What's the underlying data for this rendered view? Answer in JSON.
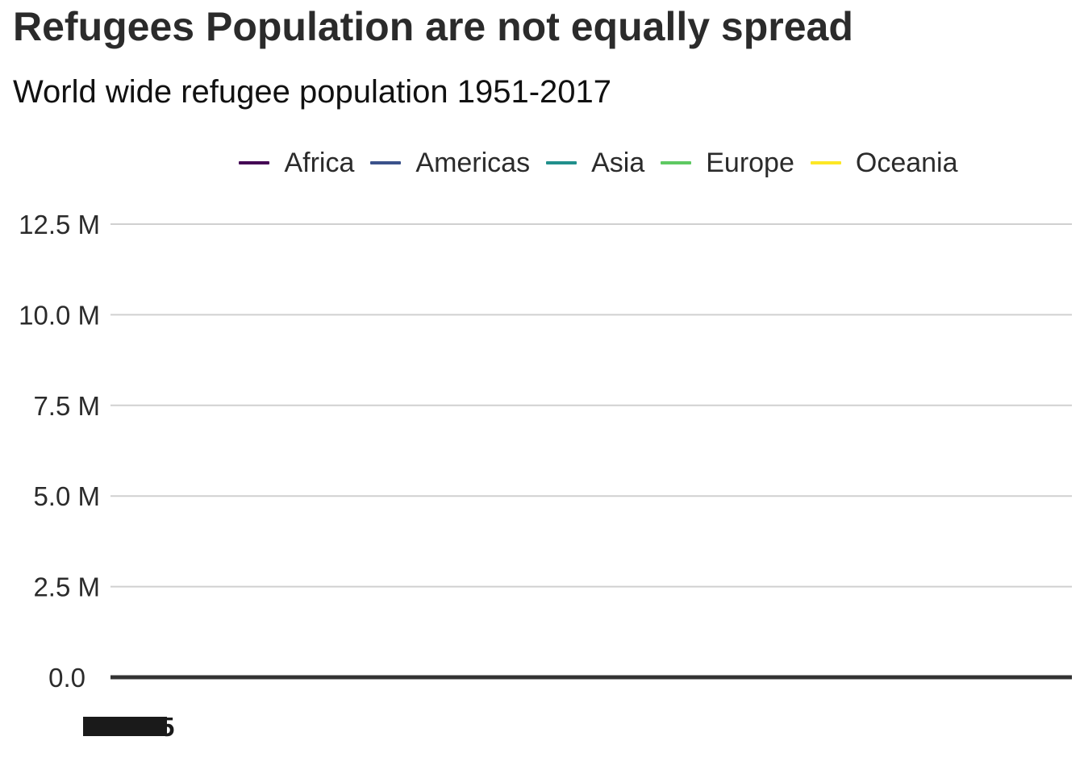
{
  "chart_data": {
    "type": "line",
    "title": "Refugees Population are not equally spread",
    "subtitle": "World wide refugee population 1951-2017",
    "xlabel": "",
    "ylabel": "",
    "y_unit": "M",
    "ylim": [
      0,
      12500000
    ],
    "y_ticks": [
      {
        "value": 12500000,
        "label": "12.5 M"
      },
      {
        "value": 10000000,
        "label": "10.0 M"
      },
      {
        "value": 7500000,
        "label": "7.5 M"
      },
      {
        "value": 5000000,
        "label": "5.0 M"
      },
      {
        "value": 2500000,
        "label": "2.5 M"
      },
      {
        "value": 0,
        "label": "0.0"
      }
    ],
    "x_tick_labels_overlapping": [
      "1",
      "5"
    ],
    "grid": true,
    "legend_position": "top",
    "series": [
      {
        "name": "Africa",
        "color": "#440154",
        "values": []
      },
      {
        "name": "Americas",
        "color": "#3b528b",
        "values": []
      },
      {
        "name": "Asia",
        "color": "#21908c",
        "values": []
      },
      {
        "name": "Europe",
        "color": "#5ec962",
        "values": []
      },
      {
        "name": "Oceania",
        "color": "#fde725",
        "values": []
      }
    ]
  }
}
